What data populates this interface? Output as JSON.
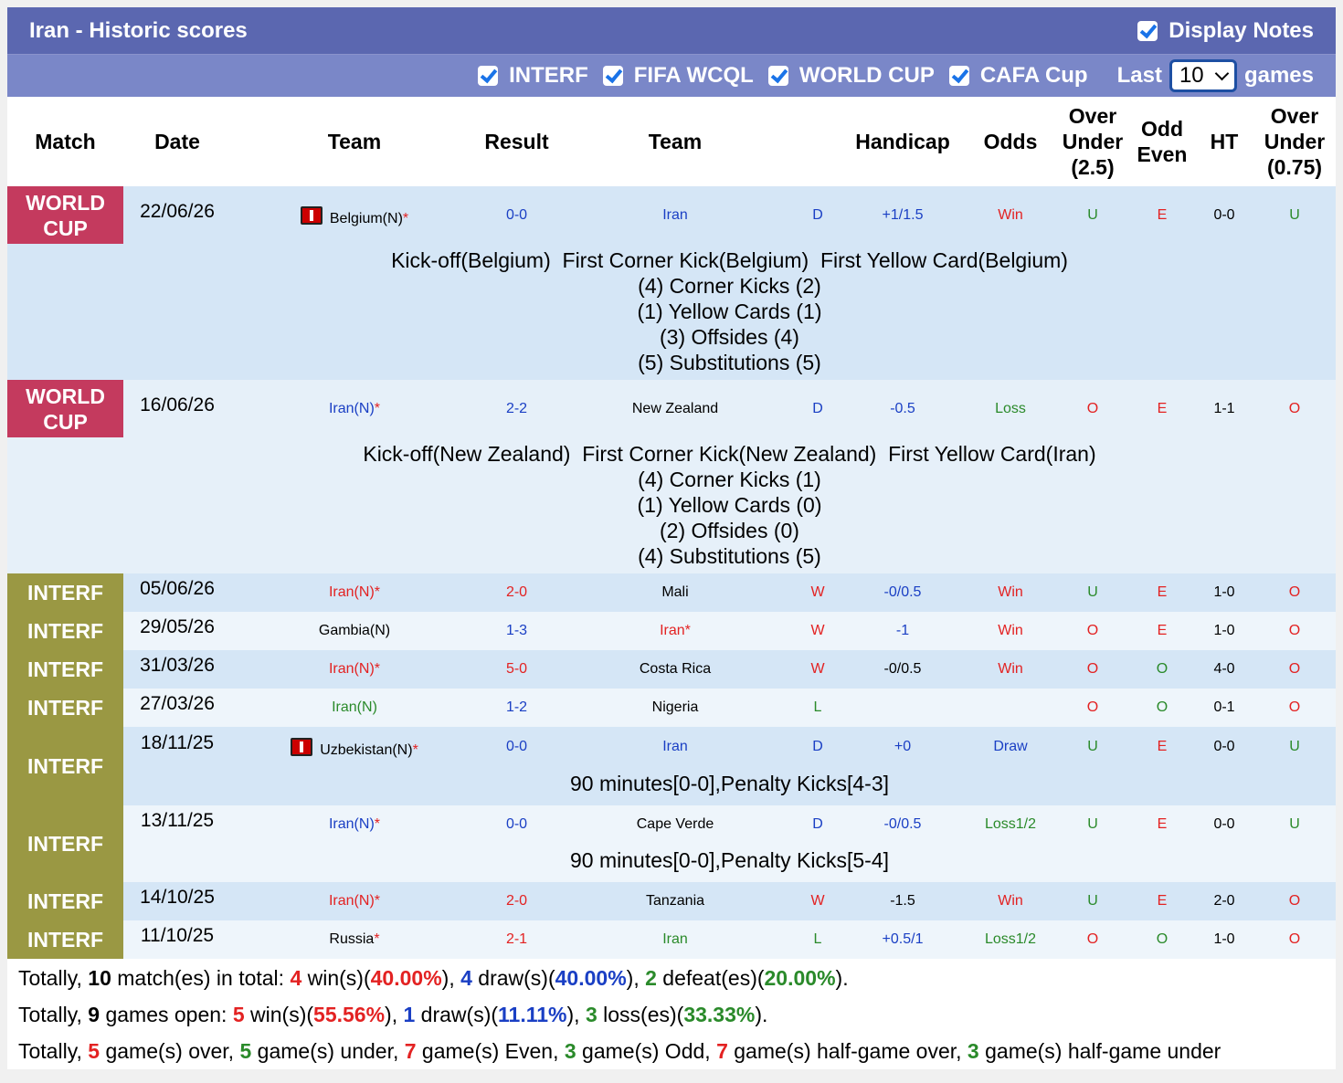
{
  "header": {
    "title": "Iran - Historic scores",
    "display_notes_label": "Display Notes",
    "filters": [
      "INTERF",
      "FIFA WCQL",
      "WORLD CUP",
      "CAFA Cup"
    ],
    "last_label": "Last",
    "last_value": "10",
    "games_label": "games"
  },
  "columns": {
    "match": "Match",
    "date": "Date",
    "team1": "Team",
    "result": "Result",
    "team2": "Team",
    "handicap": "Handicap",
    "odds": "Odds",
    "over_under": "Over Under (2.5)",
    "odd_even": "Odd Even",
    "ht": "HT",
    "over_under2": "Over Under (0.75)"
  },
  "rows": [
    {
      "league": "WORLD CUP",
      "date": "22/06/26",
      "team1": "Belgium(N)",
      "result": "0-0",
      "team2": "Iran",
      "wl": "D",
      "handicap": "+1/1.5",
      "odds": "Win",
      "ou": "U",
      "oe": "E",
      "ht": "0-0",
      "ou2": "U",
      "notes": [
        "Kick-off(Belgium)  First Corner Kick(Belgium)  First Yellow Card(Belgium)",
        "(4) Corner Kicks (2)",
        "(1) Yellow Cards (1)",
        "(3) Offsides (4)",
        "(5) Substitutions (5)"
      ]
    },
    {
      "league": "WORLD CUP",
      "date": "16/06/26",
      "team1": "Iran(N)",
      "result": "2-2",
      "team2": "New Zealand",
      "wl": "D",
      "handicap": "-0.5",
      "odds": "Loss",
      "ou": "O",
      "oe": "E",
      "ht": "1-1",
      "ou2": "O",
      "notes": [
        "Kick-off(New Zealand)  First Corner Kick(New Zealand)  First Yellow Card(Iran)",
        "(4) Corner Kicks (1)",
        "(1) Yellow Cards (0)",
        "(2) Offsides (0)",
        "(4) Substitutions (5)"
      ]
    },
    {
      "league": "INTERF",
      "date": "05/06/26",
      "team1": "Iran(N)",
      "result": "2-0",
      "team2": "Mali",
      "wl": "W",
      "handicap": "-0/0.5",
      "odds": "Win",
      "ou": "U",
      "oe": "E",
      "ht": "1-0",
      "ou2": "O"
    },
    {
      "league": "INTERF",
      "date": "29/05/26",
      "team1": "Gambia(N)",
      "result": "1-3",
      "team2": "Iran",
      "wl": "W",
      "handicap": "-1",
      "odds": "Win",
      "ou": "O",
      "oe": "E",
      "ht": "1-0",
      "ou2": "O"
    },
    {
      "league": "INTERF",
      "date": "31/03/26",
      "team1": "Iran(N)",
      "result": "5-0",
      "team2": "Costa Rica",
      "wl": "W",
      "handicap": "-0/0.5",
      "odds": "Win",
      "ou": "O",
      "oe": "O",
      "ht": "4-0",
      "ou2": "O"
    },
    {
      "league": "INTERF",
      "date": "27/03/26",
      "team1": "Iran(N)",
      "result": "1-2",
      "team2": "Nigeria",
      "wl": "L",
      "handicap": "",
      "odds": "",
      "ou": "O",
      "oe": "O",
      "ht": "0-1",
      "ou2": "O"
    },
    {
      "league": "INTERF",
      "date": "18/11/25",
      "team1": "Uzbekistan(N)",
      "result": "0-0",
      "team2": "Iran",
      "wl": "D",
      "handicap": "+0",
      "odds": "Draw",
      "ou": "U",
      "oe": "E",
      "ht": "0-0",
      "ou2": "U",
      "notes": [
        "90 minutes[0-0],Penalty Kicks[4-3]"
      ]
    },
    {
      "league": "INTERF",
      "date": "13/11/25",
      "team1": "Iran(N)",
      "result": "0-0",
      "team2": "Cape Verde",
      "wl": "D",
      "handicap": "-0/0.5",
      "odds": "Loss1/2",
      "ou": "U",
      "oe": "E",
      "ht": "0-0",
      "ou2": "U",
      "notes": [
        "90 minutes[0-0],Penalty Kicks[5-4]"
      ]
    },
    {
      "league": "INTERF",
      "date": "14/10/25",
      "team1": "Iran(N)",
      "result": "2-0",
      "team2": "Tanzania",
      "wl": "W",
      "handicap": "-1.5",
      "odds": "Win",
      "ou": "U",
      "oe": "E",
      "ht": "2-0",
      "ou2": "O"
    },
    {
      "league": "INTERF",
      "date": "11/10/25",
      "team1": "Russia",
      "result": "2-1",
      "team2": "Iran",
      "wl": "L",
      "handicap": "+0.5/1",
      "odds": "Loss1/2",
      "ou": "O",
      "oe": "O",
      "ht": "1-0",
      "ou2": "O"
    }
  ],
  "totals": {
    "line1": {
      "a": "Totally, ",
      "n1": "10",
      "b": " match(es) in total: ",
      "n2": "4",
      "c": " win(s)(",
      "p1": "40.00%",
      "d": "), ",
      "n3": "4",
      "e": " draw(s)(",
      "p2": "40.00%",
      "f": "), ",
      "n4": "2",
      "g": " defeat(es)(",
      "p3": "20.00%",
      "h": ")."
    },
    "line2": {
      "a": "Totally, ",
      "n1": "9",
      "b": " games open: ",
      "n2": "5",
      "c": " win(s)(",
      "p1": "55.56%",
      "d": "), ",
      "n3": "1",
      "e": " draw(s)(",
      "p2": "11.11%",
      "f": "), ",
      "n4": "3",
      "g": " loss(es)(",
      "p3": "33.33%",
      "h": ")."
    },
    "line3": {
      "a": "Totally, ",
      "n1": "5",
      "b": " game(s) over, ",
      "n2": "5",
      "c": " game(s) under, ",
      "n3": "7",
      "d": " game(s) Even, ",
      "n4": "3",
      "e": " game(s) Odd, ",
      "n5": "7",
      "f": " game(s) half-game over, ",
      "n6": "3",
      "g": " game(s) half-game under"
    }
  },
  "colors": {
    "header": "#5b67b0",
    "subheader": "#7a87c8",
    "world_cup": "#c43a5e",
    "interf": "#9a9843",
    "row_dark": "#d5e6f6",
    "row_light": "#eef5fb"
  }
}
